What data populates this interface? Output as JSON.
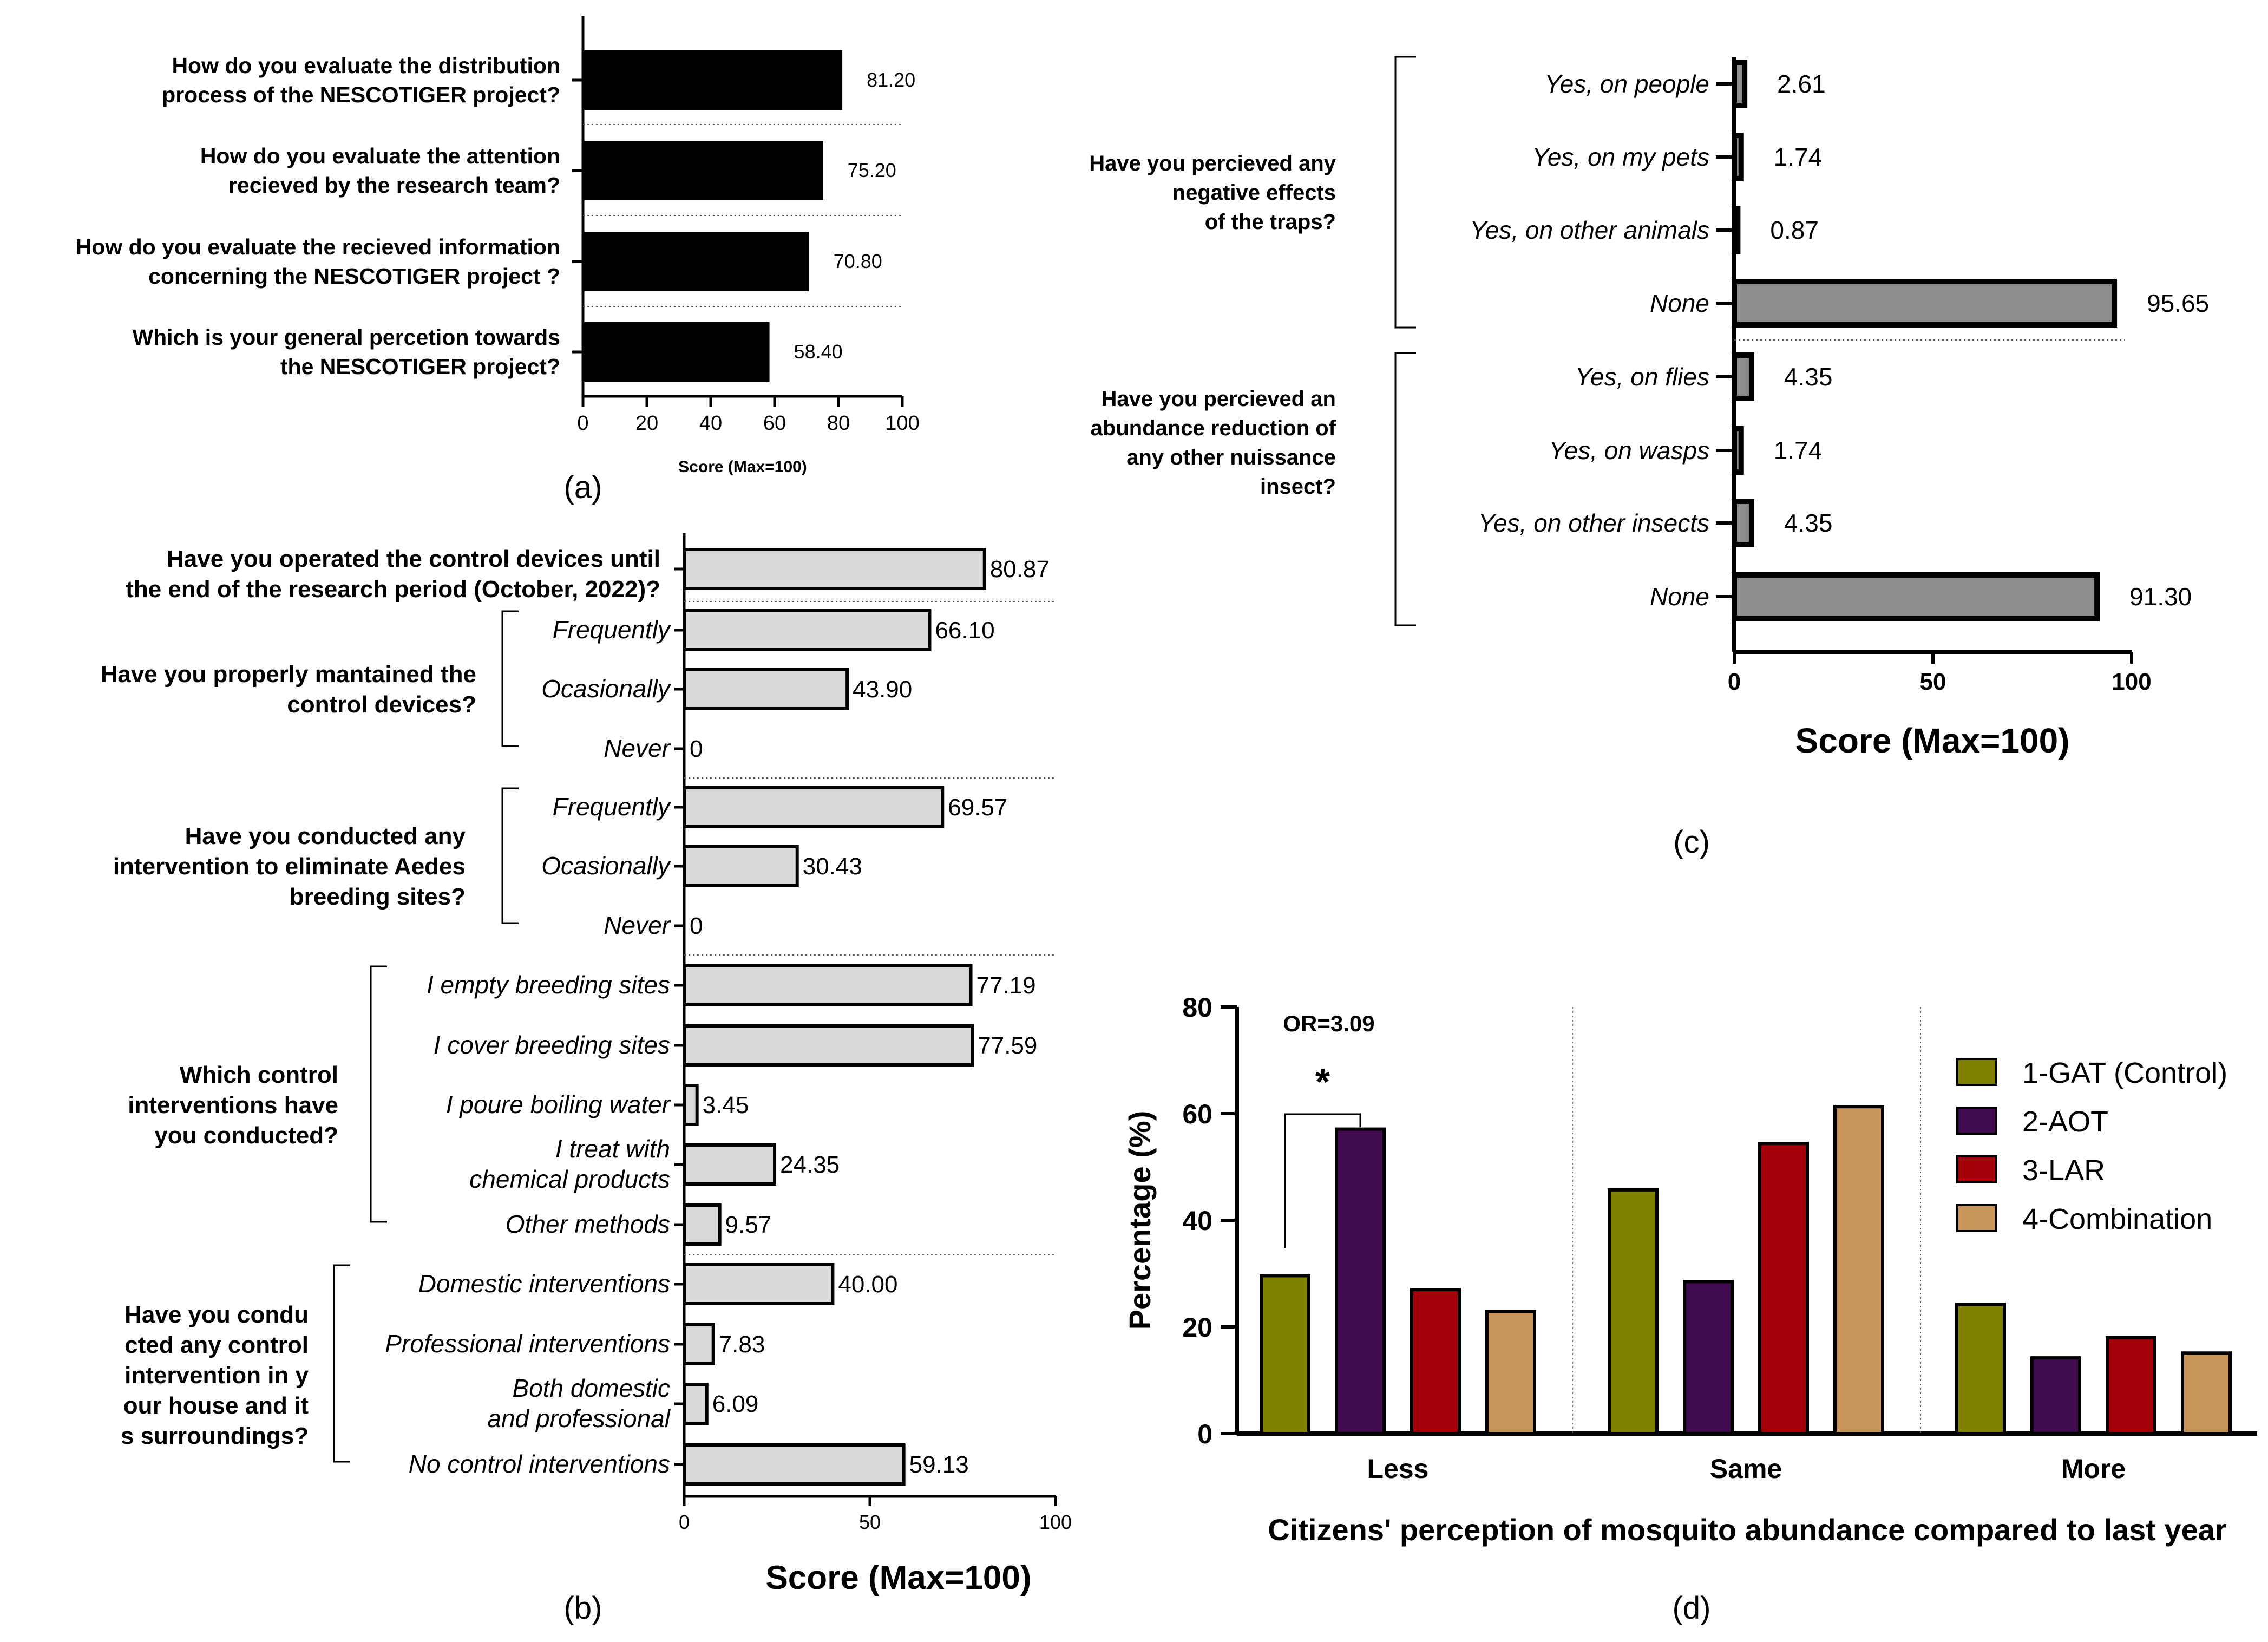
{
  "chart_data": [
    {
      "panel": "a",
      "type": "bar",
      "orientation": "horizontal",
      "panel_label": "(a)",
      "categories": [
        [
          "How do you evaluate the distribution",
          "process of the NESCOTIGER project?"
        ],
        [
          "How do you evaluate the attention",
          "recieved by the research team?"
        ],
        [
          "How do you evaluate the recieved information",
          "concerning the NESCOTIGER project ?"
        ],
        [
          "Which is your general percetion towards",
          "the NESCOTIGER project?"
        ]
      ],
      "values": [
        81.2,
        75.2,
        70.8,
        58.4
      ],
      "value_labels": [
        "81.20",
        "75.20",
        "70.80",
        "58.40"
      ],
      "bar_color": "#000000",
      "xlabel": "Score (Max=100)",
      "xlim": [
        0,
        100
      ],
      "ticks": [
        "0",
        "20",
        "40",
        "60",
        "80",
        "100"
      ]
    },
    {
      "panel": "b",
      "type": "bar",
      "orientation": "horizontal",
      "panel_label": "(b)",
      "groups": [
        {
          "question": [
            "Have you operated the control devices until",
            "the end of the research period (October, 2022)?"
          ],
          "items": [
            {
              "label": [],
              "value": 80.87,
              "value_label": "80.87"
            }
          ]
        },
        {
          "question": [
            "Have you properly mantained the",
            "control devices?"
          ],
          "items": [
            {
              "label": [
                "Frequently"
              ],
              "value": 66.1,
              "value_label": "66.10"
            },
            {
              "label": [
                "Ocasionally"
              ],
              "value": 43.9,
              "value_label": "43.90"
            },
            {
              "label": [
                "Never"
              ],
              "value": 0,
              "value_label": "0"
            }
          ]
        },
        {
          "question": [
            "Have you conducted any",
            "intervention to eliminate Aedes",
            "breeding sites?"
          ],
          "items": [
            {
              "label": [
                "Frequently"
              ],
              "value": 69.57,
              "value_label": "69.57"
            },
            {
              "label": [
                "Ocasionally"
              ],
              "value": 30.43,
              "value_label": "30.43"
            },
            {
              "label": [
                "Never"
              ],
              "value": 0,
              "value_label": "0"
            }
          ]
        },
        {
          "question": [
            "Which control",
            "interventions have",
            "you conducted?"
          ],
          "items": [
            {
              "label": [
                "I empty breeding sites"
              ],
              "value": 77.19,
              "value_label": "77.19"
            },
            {
              "label": [
                "I cover breeding sites"
              ],
              "value": 77.59,
              "value_label": "77.59"
            },
            {
              "label": [
                "I poure boiling water"
              ],
              "value": 3.45,
              "value_label": "3.45"
            },
            {
              "label": [
                "I treat with",
                "chemical products"
              ],
              "value": 24.35,
              "value_label": "24.35"
            },
            {
              "label": [
                "Other methods"
              ],
              "value": 9.57,
              "value_label": "9.57"
            }
          ]
        },
        {
          "question": [
            "Have you condu",
            "cted any control",
            "intervention in y",
            "our house and it",
            "s surroundings?"
          ],
          "items": [
            {
              "label": [
                "Domestic interventions"
              ],
              "value": 40.0,
              "value_label": "40.00"
            },
            {
              "label": [
                "Professional interventions"
              ],
              "value": 7.83,
              "value_label": "7.83"
            },
            {
              "label": [
                "Both domestic",
                "and professional"
              ],
              "value": 6.09,
              "value_label": "6.09"
            },
            {
              "label": [
                "No control interventions"
              ],
              "value": 59.13,
              "value_label": "59.13"
            }
          ]
        }
      ],
      "bar_color": "#d9d9d9",
      "xlabel": "Score (Max=100)",
      "xlim": [
        0,
        100
      ],
      "ticks": [
        "0",
        "50",
        "100"
      ]
    },
    {
      "panel": "c",
      "type": "bar",
      "orientation": "horizontal",
      "panel_label": "(c)",
      "groups": [
        {
          "question": [
            "Have you percieved any",
            "negative effects",
            "of the traps?"
          ],
          "items": [
            {
              "label": "Yes, on people",
              "value": 2.61,
              "value_label": "2.61"
            },
            {
              "label": "Yes, on my pets",
              "value": 1.74,
              "value_label": "1.74"
            },
            {
              "label": "Yes, on other animals",
              "value": 0.87,
              "value_label": "0.87"
            },
            {
              "label": "None",
              "value": 95.65,
              "value_label": "95.65"
            }
          ]
        },
        {
          "question": [
            "Have you percieved an",
            "abundance reduction of",
            "any other nuissance",
            "insect?"
          ],
          "items": [
            {
              "label": "Yes, on flies",
              "value": 4.35,
              "value_label": "4.35"
            },
            {
              "label": "Yes, on wasps",
              "value": 1.74,
              "value_label": "1.74"
            },
            {
              "label": "Yes, on other insects",
              "value": 4.35,
              "value_label": "4.35"
            },
            {
              "label": "None",
              "value": 91.3,
              "value_label": "91.30"
            }
          ]
        }
      ],
      "bar_color": "#8c8c8c",
      "xlabel": "Score (Max=100)",
      "xlim": [
        0,
        100
      ],
      "ticks": [
        "0",
        "50",
        "100"
      ]
    },
    {
      "panel": "d",
      "type": "bar",
      "orientation": "vertical",
      "panel_label": "(d)",
      "categories": [
        "Less",
        "Same",
        "More"
      ],
      "series": [
        {
          "name": "1-GAT (Control)",
          "color": "#808000",
          "values": [
            29.6,
            45.7,
            24.2
          ]
        },
        {
          "name": "2-AOT",
          "color": "#400a4e",
          "values": [
            57.1,
            28.5,
            14.2
          ]
        },
        {
          "name": "3-LAR",
          "color": "#a30009",
          "values": [
            27.0,
            54.4,
            18.0
          ]
        },
        {
          "name": "4-Combination",
          "color": "#c8965a",
          "values": [
            22.9,
            61.3,
            15.1
          ]
        }
      ],
      "annotation": {
        "text": "OR=3.09",
        "star": "*",
        "between": [
          "1-GAT (Control)",
          "2-AOT"
        ],
        "category": "Less"
      },
      "ylabel": "Percentage (%)",
      "xlabel": "Citizens' perception of mosquito abundance compared to last year",
      "ylim": [
        0,
        80
      ],
      "yticks": [
        "0",
        "20",
        "40",
        "60",
        "80"
      ],
      "legend": "top-right"
    }
  ]
}
